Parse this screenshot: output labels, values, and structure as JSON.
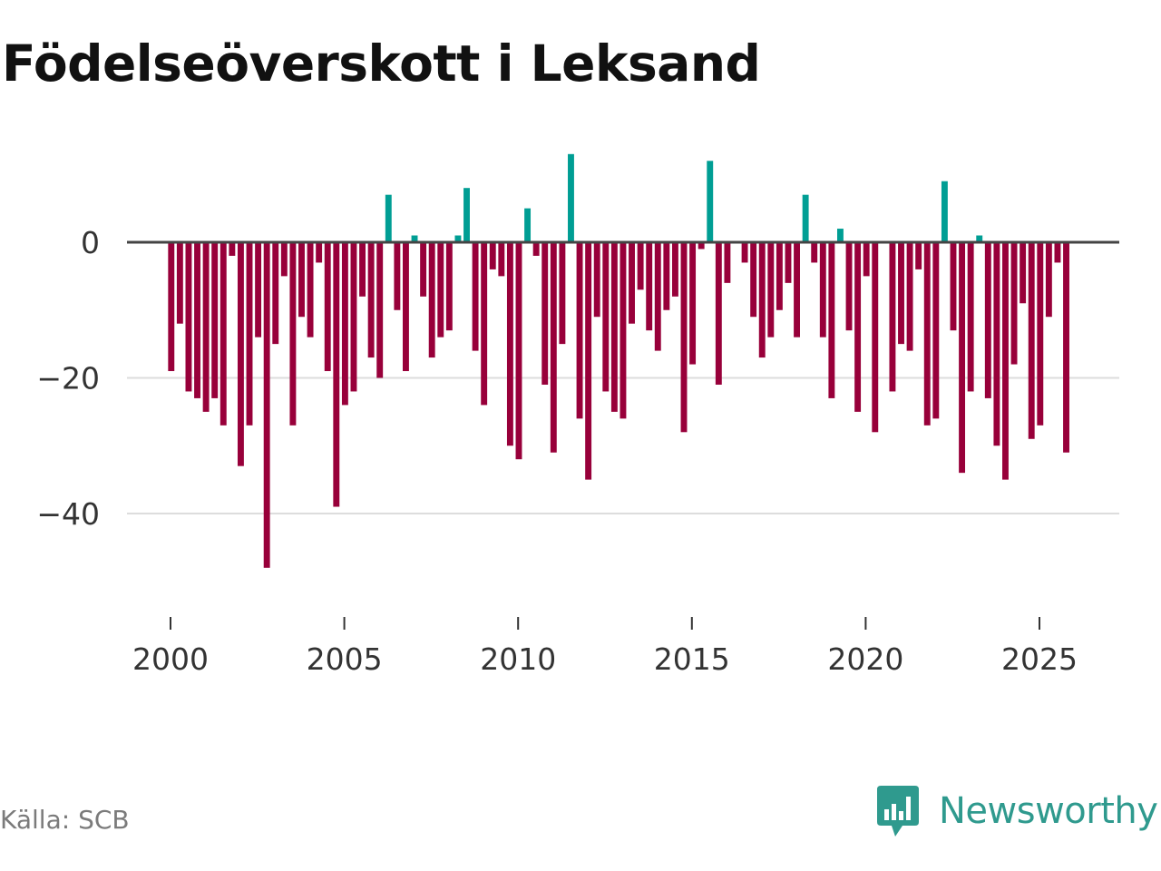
{
  "chart_data": {
    "type": "bar",
    "title": "Födelseöverskott i Leksand",
    "xlabel": "",
    "ylabel": "",
    "x_start": 2000.0,
    "x_step": 0.25,
    "values": [
      -19,
      -12,
      -22,
      -23,
      -25,
      -23,
      -27,
      -2,
      -33,
      -27,
      -14,
      -48,
      -15,
      -5,
      -27,
      -11,
      -14,
      -3,
      -19,
      -39,
      -24,
      -22,
      -8,
      -17,
      -20,
      7,
      -10,
      -19,
      1,
      -8,
      -17,
      -14,
      -13,
      1,
      8,
      -16,
      -24,
      -4,
      -5,
      -30,
      -32,
      5,
      -2,
      -21,
      -31,
      -15,
      13,
      -26,
      -35,
      -11,
      -22,
      -25,
      -26,
      -12,
      -7,
      -13,
      -16,
      -10,
      -8,
      -28,
      -18,
      -1,
      12,
      -21,
      -6,
      0,
      -3,
      -11,
      -17,
      -14,
      -10,
      -6,
      -14,
      7,
      -3,
      -14,
      -23,
      2,
      -13,
      -25,
      -5,
      -28,
      0,
      -22,
      -15,
      -16,
      -4,
      -27,
      -26,
      9,
      -13,
      -34,
      -22,
      1,
      -23,
      -30,
      -35,
      -18,
      -9,
      -29,
      -27,
      -11,
      -3,
      -31
    ],
    "x_ticks": [
      2000,
      2005,
      2010,
      2015,
      2020,
      2025
    ],
    "y_ticks": [
      0,
      -20,
      -40
    ],
    "y_tick_labels": [
      "0",
      "−20",
      "−40"
    ],
    "ylim": [
      -50,
      18
    ],
    "xlim": [
      1999.5,
      2027.5
    ],
    "grid": true,
    "colors": {
      "positive": "#009e94",
      "negative": "#98003a",
      "zero_line": "#444444",
      "grid": "#dddddd"
    }
  },
  "footer": {
    "source": "Källa: SCB",
    "brand": "Newsworthy"
  },
  "brand_colors": {
    "logo": "#2f9a8e"
  }
}
